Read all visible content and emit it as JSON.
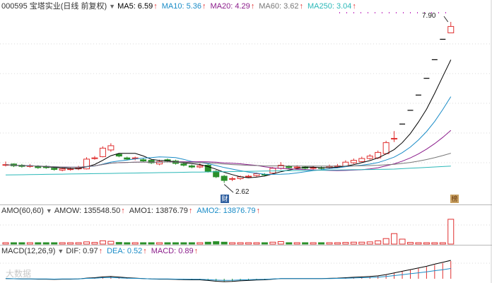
{
  "main_header": {
    "title": "000595 宝塔实业(日线 前复权)",
    "ma": [
      {
        "label": "MA5: 6.59",
        "color": "#000000"
      },
      {
        "label": "MA10: 5.36",
        "color": "#1a8cc7"
      },
      {
        "label": "MA20: 4.29",
        "color": "#8b1c8b"
      },
      {
        "label": "MA60: 3.62",
        "color": "#777777"
      },
      {
        "label": "MA250: 3.04",
        "color": "#2bb8b8"
      }
    ]
  },
  "price_labels": {
    "high": "7.90",
    "low": "2.62"
  },
  "badges": {
    "cai": "财",
    "bang": "榜"
  },
  "amo_header": {
    "title": "AMO(60,60)",
    "items": [
      {
        "label": "AMOW: 135548.50",
        "color": "#000000"
      },
      {
        "label": "AMO1: 13876.79",
        "color": "#000000"
      },
      {
        "label": "AMO2: 13876.79",
        "color": "#1a8cc7"
      }
    ]
  },
  "macd_header": {
    "title": "MACD(12,26,9)",
    "items": [
      {
        "label": "DIF: 0.97",
        "color": "#000000"
      },
      {
        "label": "DEA: 0.52",
        "color": "#1a8cc7"
      },
      {
        "label": "MACD: 0.89",
        "color": "#8b1c8b"
      }
    ]
  },
  "watermark": "大数据",
  "icons": {
    "arrow": "up-arrow-icon",
    "dropdown": "triangle-down-icon"
  },
  "colors": {
    "up": "#e03030",
    "down": "#2a8f2a"
  },
  "chart_data": {
    "type": "candlestick",
    "candles": [
      [
        3.22,
        3.22,
        3.32,
        3.16
      ],
      [
        3.24,
        3.18,
        3.26,
        3.14
      ],
      [
        3.2,
        3.16,
        3.24,
        3.12
      ],
      [
        3.16,
        3.18,
        3.24,
        3.12
      ],
      [
        3.16,
        3.12,
        3.2,
        3.08
      ],
      [
        3.16,
        3.12,
        3.2,
        3.08
      ],
      [
        3.1,
        3.06,
        3.14,
        3.02
      ],
      [
        3.04,
        3.08,
        3.14,
        3.0
      ],
      [
        3.06,
        3.08,
        3.14,
        3.02
      ],
      [
        3.08,
        3.12,
        3.18,
        3.04
      ],
      [
        3.08,
        3.4,
        3.46,
        3.06
      ],
      [
        3.42,
        3.44,
        3.5,
        3.38
      ],
      [
        3.48,
        3.76,
        3.82,
        3.46
      ],
      [
        3.7,
        3.84,
        3.92,
        3.64
      ],
      [
        3.56,
        3.5,
        3.6,
        3.46
      ],
      [
        3.44,
        3.4,
        3.48,
        3.36
      ],
      [
        3.42,
        3.44,
        3.48,
        3.36
      ],
      [
        3.38,
        3.34,
        3.42,
        3.3
      ],
      [
        3.36,
        3.28,
        3.4,
        3.24
      ],
      [
        3.24,
        3.32,
        3.38,
        3.2
      ],
      [
        3.38,
        3.34,
        3.42,
        3.3
      ],
      [
        3.34,
        3.26,
        3.38,
        3.22
      ],
      [
        3.24,
        3.2,
        3.28,
        3.16
      ],
      [
        3.18,
        3.14,
        3.22,
        3.1
      ],
      [
        3.14,
        3.18,
        3.26,
        3.1
      ],
      [
        3.2,
        3.0,
        3.24,
        2.96
      ],
      [
        3.0,
        2.82,
        3.04,
        2.78
      ],
      [
        2.84,
        2.7,
        2.88,
        2.62
      ],
      [
        2.74,
        2.76,
        2.82,
        2.68
      ],
      [
        2.76,
        2.82,
        2.86,
        2.72
      ],
      [
        2.82,
        2.84,
        2.88,
        2.78
      ],
      [
        2.86,
        2.92,
        2.96,
        2.82
      ],
      [
        2.9,
        2.88,
        2.94,
        2.84
      ],
      [
        2.94,
        3.1,
        3.14,
        2.92
      ],
      [
        3.1,
        3.2,
        3.3,
        3.06
      ],
      [
        3.16,
        3.12,
        3.2,
        3.08
      ],
      [
        3.12,
        3.14,
        3.2,
        3.08
      ],
      [
        3.14,
        3.1,
        3.18,
        3.06
      ],
      [
        3.1,
        3.12,
        3.18,
        3.06
      ],
      [
        3.12,
        3.1,
        3.16,
        3.06
      ],
      [
        3.12,
        3.16,
        3.22,
        3.08
      ],
      [
        3.16,
        3.18,
        3.24,
        3.12
      ],
      [
        3.16,
        3.3,
        3.36,
        3.14
      ],
      [
        3.28,
        3.36,
        3.42,
        3.24
      ],
      [
        3.32,
        3.42,
        3.48,
        3.3
      ],
      [
        3.42,
        3.5,
        3.56,
        3.38
      ],
      [
        3.44,
        3.62,
        3.68,
        3.4
      ],
      [
        3.58,
        3.94,
        4.0,
        3.56
      ],
      [
        4.08,
        4.08,
        4.32,
        3.96
      ],
      [
        4.55,
        4.55,
        4.55,
        4.55
      ],
      [
        5.0,
        5.0,
        5.0,
        5.0
      ],
      [
        5.5,
        5.5,
        5.5,
        5.5
      ],
      [
        6.05,
        6.05,
        6.05,
        6.05
      ],
      [
        6.66,
        6.66,
        6.66,
        6.66
      ],
      [
        7.33,
        7.33,
        7.33,
        7.33
      ],
      [
        7.54,
        7.75,
        7.9,
        7.54
      ]
    ],
    "amo": [
      0.05,
      0.04,
      0.04,
      0.05,
      0.04,
      0.04,
      0.04,
      0.04,
      0.04,
      0.04,
      0.08,
      0.06,
      0.12,
      0.1,
      0.06,
      0.05,
      0.05,
      0.05,
      0.05,
      0.05,
      0.05,
      0.05,
      0.04,
      0.04,
      0.04,
      0.07,
      0.09,
      0.07,
      0.05,
      0.05,
      0.05,
      0.05,
      0.04,
      0.07,
      0.09,
      0.05,
      0.05,
      0.04,
      0.04,
      0.04,
      0.04,
      0.05,
      0.06,
      0.07,
      0.07,
      0.08,
      0.12,
      0.2,
      0.38,
      0.18,
      0.06,
      0.04,
      0.04,
      0.04,
      0.04,
      0.9
    ],
    "macd_hist": [
      0.01,
      0.0,
      -0.01,
      -0.01,
      -0.02,
      -0.02,
      -0.03,
      -0.02,
      -0.02,
      -0.01,
      0.03,
      0.05,
      0.09,
      0.11,
      0.08,
      0.05,
      0.03,
      0.01,
      -0.01,
      -0.02,
      -0.02,
      -0.03,
      -0.04,
      -0.05,
      -0.05,
      -0.08,
      -0.12,
      -0.14,
      -0.13,
      -0.1,
      -0.08,
      -0.06,
      -0.05,
      -0.02,
      0.01,
      0.01,
      0.01,
      0.01,
      0.01,
      0.01,
      0.02,
      0.03,
      0.05,
      0.07,
      0.09,
      0.11,
      0.14,
      0.2,
      0.28,
      0.36,
      0.44,
      0.52,
      0.6,
      0.7,
      0.79,
      0.89
    ],
    "ylim": [
      2.4,
      8.2
    ]
  }
}
